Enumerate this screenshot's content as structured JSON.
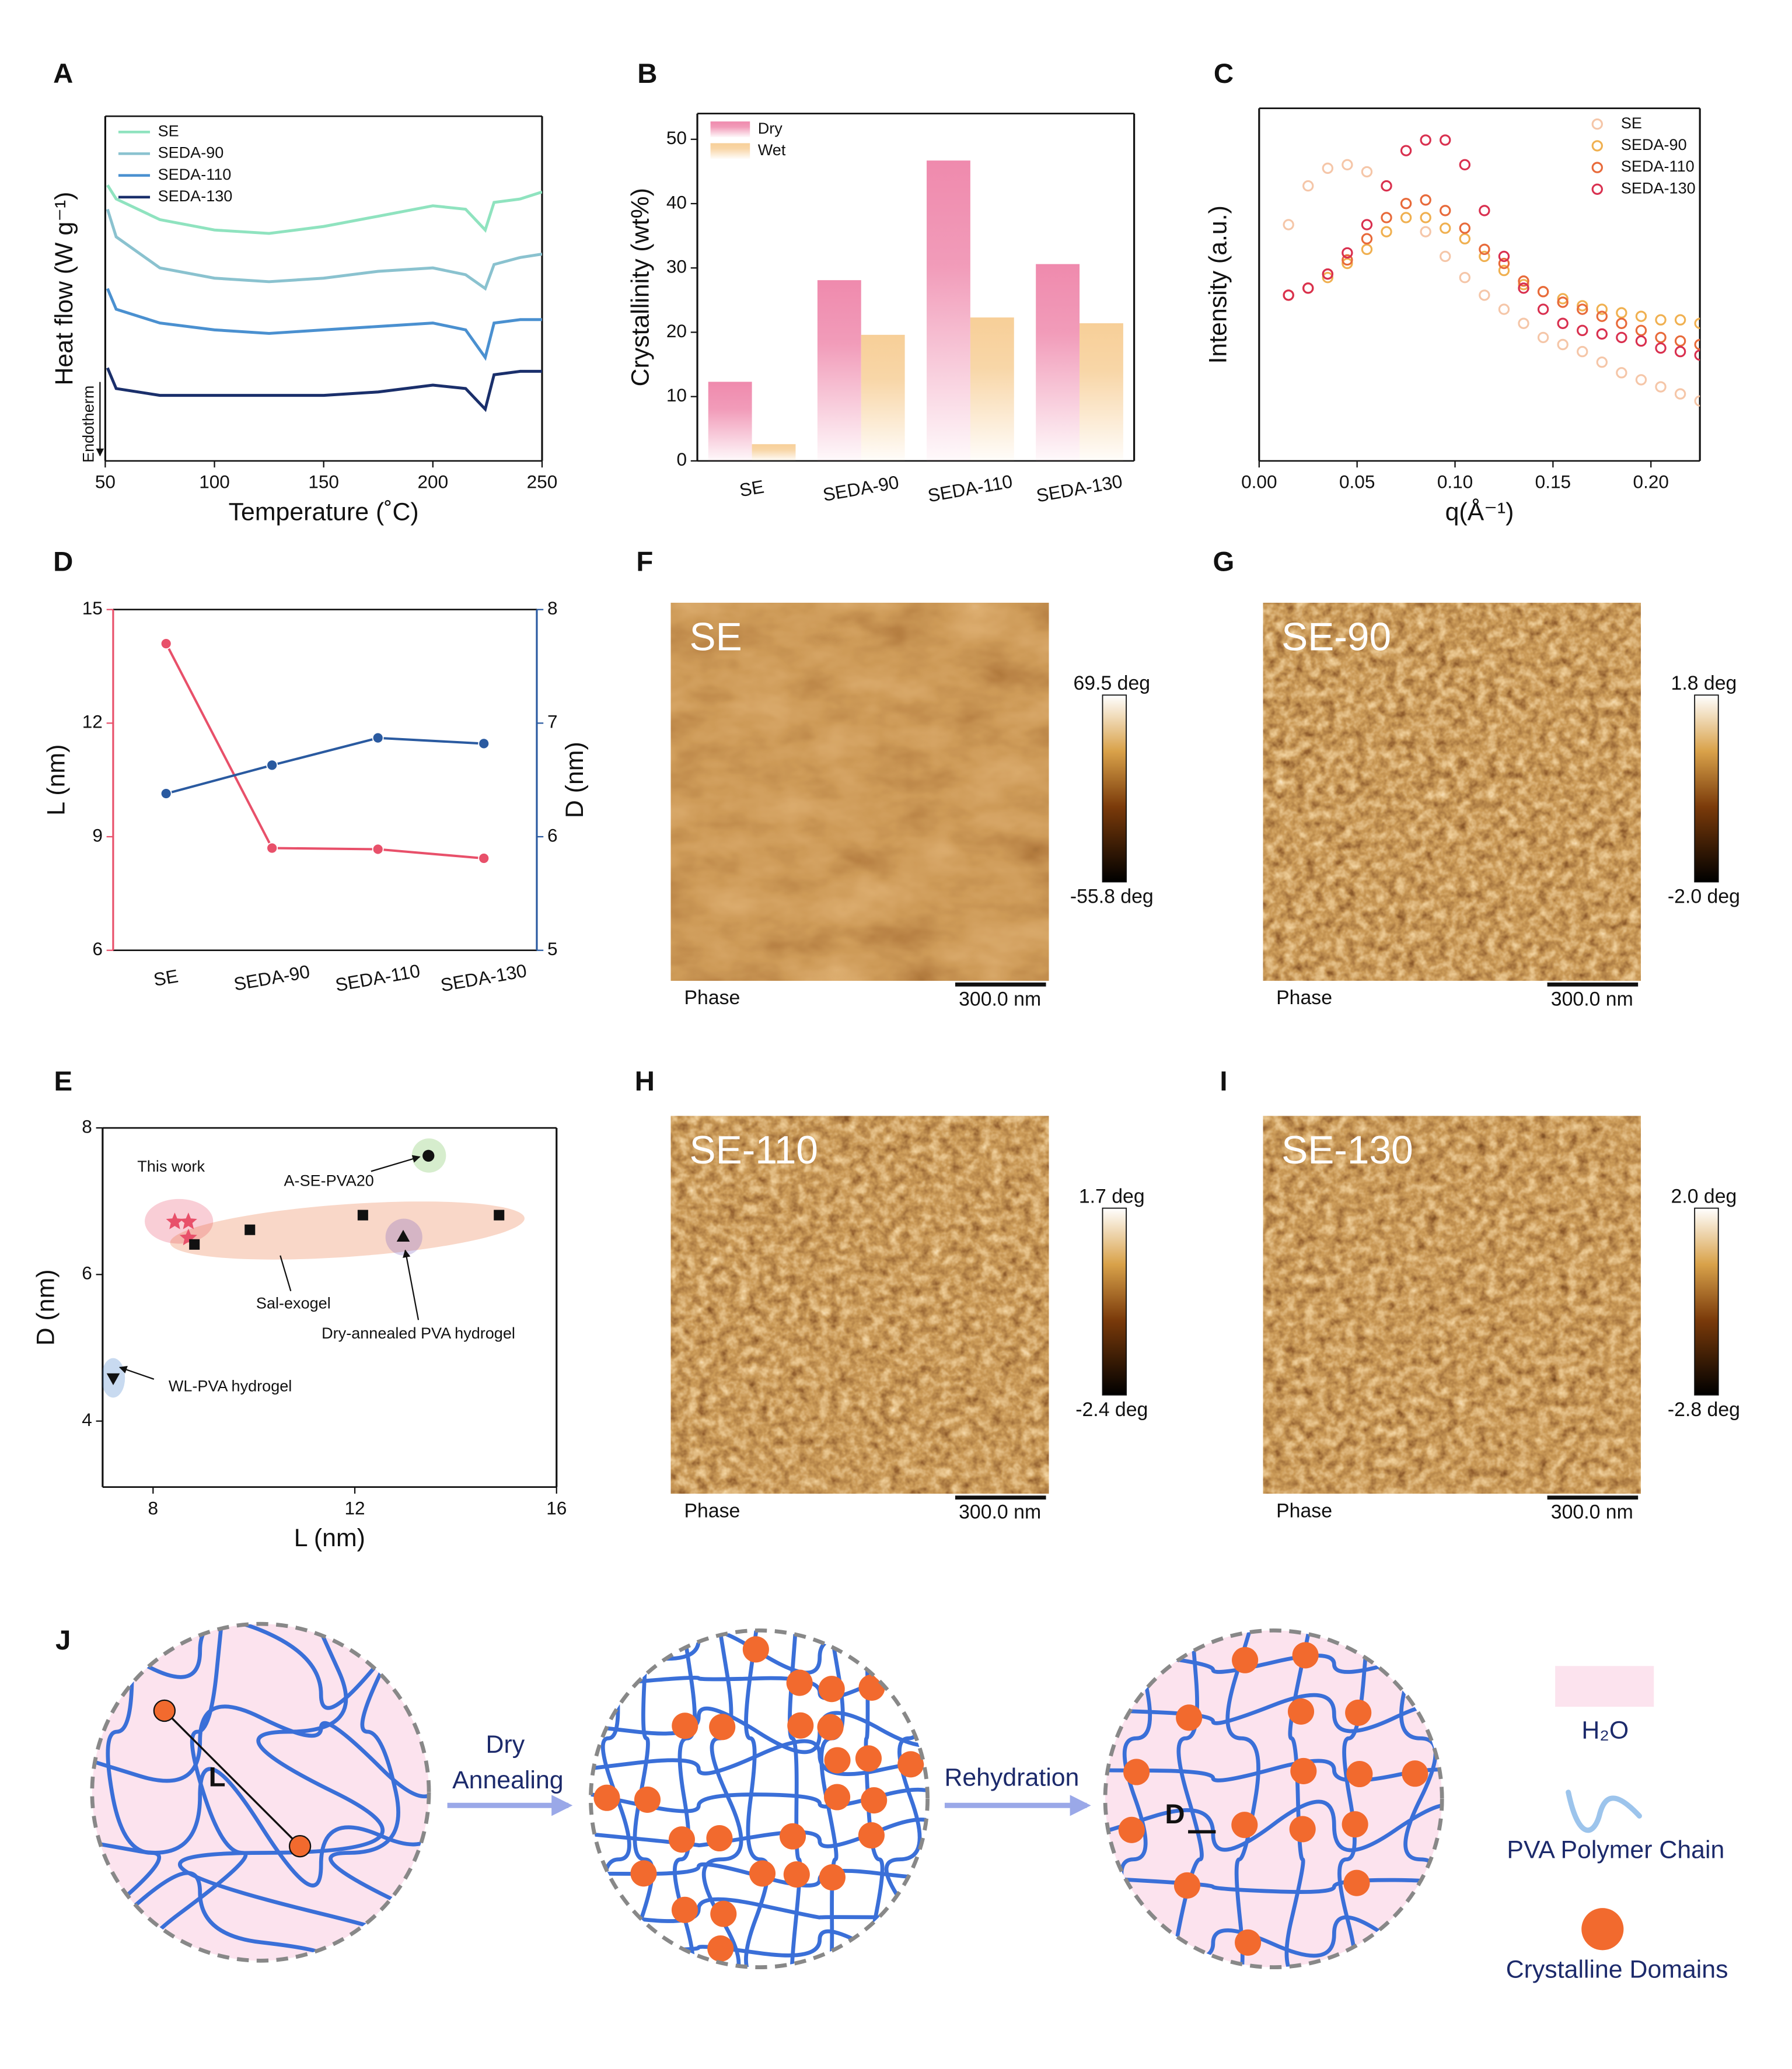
{
  "chart_data": [
    {
      "type": "line",
      "label": "A",
      "xlabel": "Temperature (˚C)",
      "ylabel": "Heat flow (W g⁻¹)",
      "annotation": "Endotherm",
      "x": [
        51,
        55,
        75,
        100,
        125,
        150,
        175,
        200,
        215,
        224,
        228,
        240,
        250
      ],
      "xlim": [
        50,
        250
      ],
      "xticks": [
        50,
        100,
        150,
        200,
        250
      ],
      "ylim": [
        0,
        10
      ],
      "legend": "upper left",
      "series": [
        {
          "name": "SE",
          "color": "#8fe3bf",
          "values": [
            8.0,
            7.6,
            7.0,
            6.7,
            6.6,
            6.8,
            7.1,
            7.4,
            7.3,
            6.7,
            7.5,
            7.6,
            7.8
          ]
        },
        {
          "name": "SEDA-90",
          "color": "#8ac2cf",
          "values": [
            7.3,
            6.5,
            5.6,
            5.3,
            5.2,
            5.3,
            5.5,
            5.6,
            5.4,
            5.0,
            5.7,
            5.9,
            6.0
          ]
        },
        {
          "name": "SEDA-110",
          "color": "#4a90d0",
          "values": [
            5.0,
            4.4,
            4.0,
            3.8,
            3.7,
            3.8,
            3.9,
            4.0,
            3.8,
            3.0,
            4.0,
            4.1,
            4.1
          ]
        },
        {
          "name": "SEDA-130",
          "color": "#1a2f6b",
          "values": [
            2.7,
            2.1,
            1.9,
            1.9,
            1.9,
            1.9,
            2.0,
            2.2,
            2.1,
            1.5,
            2.5,
            2.6,
            2.6
          ]
        }
      ]
    },
    {
      "type": "bar",
      "label": "B",
      "ylabel": "Crystallinity (wt%)",
      "categories": [
        "SE",
        "SEDA-90",
        "SEDA-110",
        "SEDA-130"
      ],
      "ylim": [
        0,
        54
      ],
      "yticks": [
        0,
        10,
        20,
        30,
        40,
        50
      ],
      "legend": "upper left",
      "series": [
        {
          "name": "Dry",
          "color": "#ef8aad",
          "values": [
            12.3,
            28.1,
            46.7,
            30.6
          ]
        },
        {
          "name": "Wet",
          "color": "#f7cf98",
          "values": [
            2.6,
            19.6,
            22.3,
            21.4
          ]
        }
      ]
    },
    {
      "type": "scatter",
      "label": "C",
      "xlabel": "q(Å⁻¹)",
      "ylabel": "Intensity (a.u.)",
      "x": [
        0.015,
        0.025,
        0.035,
        0.045,
        0.055,
        0.065,
        0.075,
        0.085,
        0.095,
        0.105,
        0.115,
        0.125,
        0.135,
        0.145,
        0.155,
        0.165,
        0.175,
        0.185,
        0.195,
        0.205,
        0.215,
        0.225
      ],
      "xlim": [
        0,
        0.225
      ],
      "xticks": [
        {
          "value": 0,
          "label": "0.00"
        },
        {
          "value": 0.05,
          "label": "0.05"
        },
        {
          "value": 0.1,
          "label": "0.10"
        },
        {
          "value": 0.15,
          "label": "0.15"
        },
        {
          "value": 0.2,
          "label": "0.20"
        }
      ],
      "ylim": [
        0,
        10
      ],
      "legend": "upper right",
      "series": [
        {
          "name": "SE",
          "color": "#f5c6a8",
          "values": [
            6.7,
            7.8,
            8.3,
            8.4,
            8.2,
            7.8,
            7.3,
            6.5,
            5.8,
            5.2,
            4.7,
            4.3,
            3.9,
            3.5,
            3.3,
            3.1,
            2.8,
            2.5,
            2.3,
            2.1,
            1.9,
            1.7
          ]
        },
        {
          "name": "SEDA-90",
          "color": "#f0b050",
          "values": [
            4.7,
            4.9,
            5.2,
            5.6,
            6.0,
            6.5,
            6.9,
            6.9,
            6.6,
            6.3,
            5.8,
            5.4,
            5.0,
            4.8,
            4.6,
            4.4,
            4.3,
            4.2,
            4.1,
            4.0,
            4.0,
            3.9
          ]
        },
        {
          "name": "SEDA-110",
          "color": "#e86a3a",
          "values": [
            4.7,
            4.9,
            5.3,
            5.7,
            6.3,
            6.9,
            7.3,
            7.4,
            7.1,
            6.6,
            6.0,
            5.6,
            5.1,
            4.8,
            4.5,
            4.3,
            4.1,
            3.9,
            3.7,
            3.5,
            3.4,
            3.3
          ]
        },
        {
          "name": "SEDA-130",
          "color": "#d9304f",
          "values": [
            4.7,
            4.9,
            5.3,
            5.9,
            6.7,
            7.8,
            8.8,
            9.1,
            9.1,
            8.4,
            7.1,
            5.8,
            4.9,
            4.3,
            3.9,
            3.7,
            3.6,
            3.5,
            3.4,
            3.2,
            3.1,
            3.0
          ]
        }
      ]
    },
    {
      "type": "line",
      "label": "D",
      "ylabel": "L (nm)",
      "y2label": "D (nm)",
      "categories": [
        "SE",
        "SEDA-90",
        "SEDA-110",
        "SEDA-130"
      ],
      "ylim": [
        6,
        15
      ],
      "yticks": [
        6,
        9,
        12,
        15
      ],
      "y2lim": [
        5,
        8
      ],
      "y2ticks": [
        5,
        6,
        7,
        8
      ],
      "markers": true,
      "series": [
        {
          "color": "#e8506a",
          "values": [
            14.1,
            8.7,
            8.67,
            8.43
          ]
        },
        {
          "color": "#2a5aa0",
          "axis": "y2",
          "values": [
            6.38,
            6.63,
            6.87,
            6.82
          ]
        }
      ]
    },
    {
      "type": "scatter",
      "label": "E",
      "xlabel": "L (nm)",
      "ylabel": "D (nm)",
      "xlim": [
        7,
        16
      ],
      "xticks": [
        8,
        12,
        16
      ],
      "ylim": [
        3.1,
        8
      ],
      "yticks": [
        4,
        6,
        8
      ],
      "series": [
        {
          "name": "This work",
          "color": "#e8506a",
          "marker": "star",
          "x": [
            8.43,
            8.7,
            8.7
          ],
          "values": [
            6.72,
            6.72,
            6.5
          ]
        },
        {
          "name": "A-SE-PVA20",
          "color": "#6cc04a",
          "marker": "circle",
          "x": [
            13.46
          ],
          "values": [
            7.62
          ]
        },
        {
          "name": "Sal-exogel",
          "color": "#e8703a",
          "marker": "square",
          "x": [
            8.82,
            9.92,
            12.16,
            14.86
          ],
          "values": [
            6.41,
            6.61,
            6.81,
            6.81
          ]
        },
        {
          "name": "Dry-annealed PVA  hydrogel",
          "color": "#7a5cc0",
          "marker": "triangle",
          "x": [
            12.96
          ],
          "values": [
            6.52
          ]
        },
        {
          "name": "WL-PVA hydrogel",
          "color": "#3a7ac8",
          "marker": "triangle-down",
          "x": [
            7.21
          ],
          "values": [
            4.58
          ]
        }
      ]
    }
  ],
  "afm_images": [
    {
      "label": "F",
      "title": "SE",
      "max": "69.5 deg",
      "min": "-55.8 deg",
      "channel": "Phase",
      "scale": "300.0 nm"
    },
    {
      "label": "G",
      "title": "SE-90",
      "max": "1.8 deg",
      "min": "-2.0 deg",
      "channel": "Phase",
      "scale": "300.0 nm"
    },
    {
      "label": "H",
      "title": "SE-110",
      "max": "1.7 deg",
      "min": "-2.4 deg",
      "channel": "Phase",
      "scale": "300.0 nm"
    },
    {
      "label": "I",
      "title": "SE-130",
      "max": "2.0 deg",
      "min": "-2.8 deg",
      "channel": "Phase",
      "scale": "300.0 nm"
    }
  ],
  "schematic": {
    "label": "J",
    "step1": [
      "Dry",
      "Annealing"
    ],
    "step2": "Rehydration",
    "l_marker": "L",
    "d_marker": "D",
    "legend": [
      "H₂O",
      "PVA Polymer Chain",
      "Crystalline Domains"
    ]
  }
}
